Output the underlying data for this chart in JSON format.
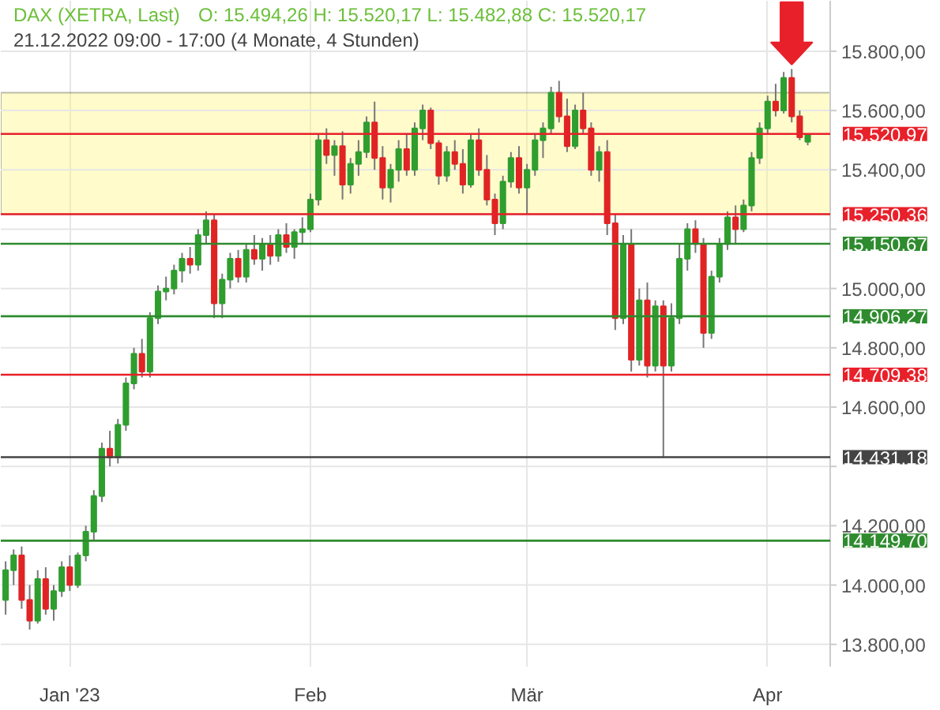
{
  "chart_data": {
    "type": "candlestick",
    "title": "DAX (XETRA, Last)",
    "subtitle": "21.12.2022 09:00 - 17:00   (4 Monate, 4 Stunden)",
    "annotations": [
      "O: 15.494,26  H: 15.520,17  L: 15.482,88  C: 15.520,17"
    ],
    "categories": [
      null,
      null,
      null,
      null,
      null,
      null,
      null,
      null,
      "Jan '23",
      null,
      null,
      null,
      null,
      null,
      null,
      null,
      null,
      null,
      null,
      null,
      null,
      null,
      null,
      null,
      null,
      null,
      null,
      null,
      null,
      null,
      null,
      null,
      null,
      null,
      null,
      null,
      null,
      null,
      "Feb",
      null,
      null,
      null,
      null,
      null,
      null,
      null,
      null,
      null,
      null,
      null,
      null,
      null,
      null,
      null,
      null,
      null,
      null,
      null,
      null,
      null,
      null,
      null,
      null,
      null,
      null,
      "Mär",
      null,
      null,
      null,
      null,
      null,
      null,
      null,
      null,
      null,
      null,
      null,
      null,
      null,
      null,
      null,
      null,
      null,
      null,
      null,
      null,
      null,
      null,
      null,
      null,
      null,
      null,
      null,
      null,
      null,
      "Apr",
      null,
      null,
      null,
      null,
      null
    ],
    "ohlc": [
      [
        13950,
        14080,
        13900,
        14050
      ],
      [
        14050,
        14120,
        14000,
        14100
      ],
      [
        14100,
        14130,
        13920,
        13950
      ],
      [
        13950,
        14000,
        13850,
        13880
      ],
      [
        13880,
        14050,
        13870,
        14020
      ],
      [
        14020,
        14060,
        13900,
        13920
      ],
      [
        13920,
        14000,
        13880,
        13980
      ],
      [
        13980,
        14080,
        13960,
        14060
      ],
      [
        14060,
        14100,
        13980,
        14000
      ],
      [
        14000,
        14110,
        13990,
        14100
      ],
      [
        14100,
        14200,
        14080,
        14180
      ],
      [
        14180,
        14320,
        14150,
        14300
      ],
      [
        14300,
        14480,
        14280,
        14460
      ],
      [
        14460,
        14520,
        14400,
        14430
      ],
      [
        14430,
        14560,
        14410,
        14540
      ],
      [
        14540,
        14700,
        14520,
        14680
      ],
      [
        14680,
        14800,
        14660,
        14780
      ],
      [
        14780,
        14830,
        14700,
        14720
      ],
      [
        14720,
        14920,
        14700,
        14900
      ],
      [
        14900,
        15010,
        14880,
        14990
      ],
      [
        14990,
        15040,
        14960,
        15000
      ],
      [
        15000,
        15080,
        14980,
        15060
      ],
      [
        15060,
        15120,
        15020,
        15100
      ],
      [
        15100,
        15140,
        15050,
        15080
      ],
      [
        15080,
        15200,
        15060,
        15180
      ],
      [
        15180,
        15260,
        15150,
        15230
      ],
      [
        15230,
        15250,
        14900,
        14950
      ],
      [
        14950,
        15050,
        14900,
        15030
      ],
      [
        15030,
        15120,
        15000,
        15100
      ],
      [
        15100,
        15130,
        15020,
        15040
      ],
      [
        15040,
        15150,
        15020,
        15130
      ],
      [
        15130,
        15180,
        15080,
        15100
      ],
      [
        15100,
        15170,
        15060,
        15150
      ],
      [
        15150,
        15180,
        15080,
        15110
      ],
      [
        15110,
        15200,
        15090,
        15180
      ],
      [
        15180,
        15220,
        15120,
        15140
      ],
      [
        15140,
        15200,
        15100,
        15190
      ],
      [
        15190,
        15240,
        15150,
        15200
      ],
      [
        15200,
        15320,
        15190,
        15300
      ],
      [
        15300,
        15520,
        15280,
        15500
      ],
      [
        15500,
        15540,
        15420,
        15450
      ],
      [
        15450,
        15500,
        15380,
        15480
      ],
      [
        15480,
        15530,
        15300,
        15350
      ],
      [
        15350,
        15440,
        15320,
        15420
      ],
      [
        15420,
        15500,
        15380,
        15460
      ],
      [
        15460,
        15580,
        15440,
        15560
      ],
      [
        15560,
        15630,
        15400,
        15440
      ],
      [
        15440,
        15480,
        15300,
        15340
      ],
      [
        15340,
        15420,
        15290,
        15400
      ],
      [
        15400,
        15500,
        15360,
        15470
      ],
      [
        15470,
        15520,
        15380,
        15400
      ],
      [
        15400,
        15560,
        15380,
        15540
      ],
      [
        15540,
        15620,
        15500,
        15600
      ],
      [
        15600,
        15610,
        15470,
        15490
      ],
      [
        15490,
        15500,
        15350,
        15380
      ],
      [
        15380,
        15480,
        15360,
        15460
      ],
      [
        15460,
        15500,
        15400,
        15420
      ],
      [
        15420,
        15470,
        15320,
        15350
      ],
      [
        15350,
        15520,
        15340,
        15500
      ],
      [
        15500,
        15540,
        15380,
        15400
      ],
      [
        15400,
        15450,
        15280,
        15300
      ],
      [
        15300,
        15320,
        15180,
        15220
      ],
      [
        15220,
        15380,
        15200,
        15360
      ],
      [
        15360,
        15460,
        15340,
        15440
      ],
      [
        15440,
        15480,
        15320,
        15340
      ],
      [
        15340,
        15420,
        15250,
        15400
      ],
      [
        15400,
        15520,
        15380,
        15500
      ],
      [
        15500,
        15560,
        15440,
        15540
      ],
      [
        15540,
        15680,
        15520,
        15660
      ],
      [
        15660,
        15700,
        15560,
        15580
      ],
      [
        15580,
        15640,
        15460,
        15480
      ],
      [
        15480,
        15620,
        15470,
        15600
      ],
      [
        15600,
        15660,
        15520,
        15540
      ],
      [
        15540,
        15560,
        15380,
        15400
      ],
      [
        15400,
        15480,
        15360,
        15460
      ],
      [
        15460,
        15500,
        15180,
        15220
      ],
      [
        15220,
        15250,
        14860,
        14900
      ],
      [
        14900,
        15180,
        14880,
        15150
      ],
      [
        15150,
        15200,
        14720,
        14760
      ],
      [
        14760,
        15000,
        14740,
        14960
      ],
      [
        14960,
        15020,
        14700,
        14740
      ],
      [
        14740,
        14960,
        14720,
        14940
      ],
      [
        14940,
        14960,
        14430,
        14740
      ],
      [
        14740,
        14950,
        14720,
        14900
      ],
      [
        14900,
        15150,
        14880,
        15100
      ],
      [
        15100,
        15220,
        15060,
        15200
      ],
      [
        15200,
        15230,
        15120,
        15150
      ],
      [
        15150,
        15170,
        14800,
        14850
      ],
      [
        14850,
        15060,
        14830,
        15040
      ],
      [
        15040,
        15170,
        15020,
        15150
      ],
      [
        15150,
        15260,
        15130,
        15240
      ],
      [
        15240,
        15280,
        15150,
        15200
      ],
      [
        15200,
        15300,
        15190,
        15280
      ],
      [
        15280,
        15460,
        15260,
        15440
      ],
      [
        15440,
        15560,
        15420,
        15540
      ],
      [
        15540,
        15650,
        15520,
        15630
      ],
      [
        15630,
        15690,
        15580,
        15600
      ],
      [
        15600,
        15730,
        15590,
        15710
      ],
      [
        15710,
        15740,
        15560,
        15580
      ],
      [
        15580,
        15600,
        15500,
        15510
      ],
      [
        15494.26,
        15520.17,
        15482.88,
        15520.17
      ]
    ],
    "ylim": [
      13725,
      15970
    ],
    "yticks": [
      {
        "value": 13800,
        "label": "13.800,00"
      },
      {
        "value": 14000,
        "label": "14.000,00"
      },
      {
        "value": 14200,
        "label": "14.200,00"
      },
      {
        "value": 14400,
        "label": null
      },
      {
        "value": 14600,
        "label": "14.600,00"
      },
      {
        "value": 14800,
        "label": "14.800,00"
      },
      {
        "value": 15000,
        "label": "15.000,00"
      },
      {
        "value": 15200,
        "label": null
      },
      {
        "value": 15400,
        "label": "15.400,00"
      },
      {
        "value": 15600,
        "label": "15.600,00"
      },
      {
        "value": 15800,
        "label": "15.800,00"
      }
    ],
    "ref_lines": [
      {
        "axis": "y",
        "value": 15520.97,
        "label": "15.520,97",
        "color": "#e8202a"
      },
      {
        "axis": "y",
        "value": 15250.36,
        "label": "15.250,36",
        "color": "#e8202a"
      },
      {
        "axis": "y",
        "value": 15150.67,
        "label": "15.150,67",
        "color": "#2e8b2e"
      },
      {
        "axis": "y",
        "value": 14906.27,
        "label": "14.906,27",
        "color": "#2e8b2e"
      },
      {
        "axis": "y",
        "value": 14709.38,
        "label": "14.709,38",
        "color": "#e8202a"
      },
      {
        "axis": "y",
        "value": 14431.18,
        "label": "14.431,18",
        "color": "#444444"
      },
      {
        "axis": "y",
        "value": 14149.7,
        "label": "14.149,70",
        "color": "#2e8b2e"
      }
    ],
    "bands": [
      {
        "axis": "y",
        "from": 15250.36,
        "to": 15660,
        "color": "#fff36b"
      }
    ],
    "grid": true
  }
}
